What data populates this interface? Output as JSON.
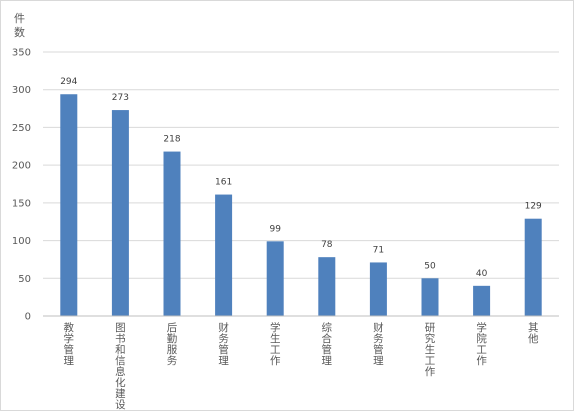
{
  "chart_data": {
    "type": "bar",
    "ylabel": "件数",
    "categories": [
      "教学管理",
      "图书和信息化建设",
      "后勤服务",
      "财务管理",
      "学生工作",
      "综合管理",
      "财务管理",
      "研究生工作",
      "学院工作",
      "其他"
    ],
    "values": [
      294,
      273,
      218,
      161,
      99,
      78,
      71,
      50,
      40,
      129
    ],
    "ylim": [
      0,
      350
    ],
    "yticks": [
      "0",
      "50",
      "100",
      "150",
      "200",
      "250",
      "300",
      "350"
    ],
    "grid": true,
    "bar_color": "#4F81BD",
    "grid_color": "#d9d9d9"
  }
}
